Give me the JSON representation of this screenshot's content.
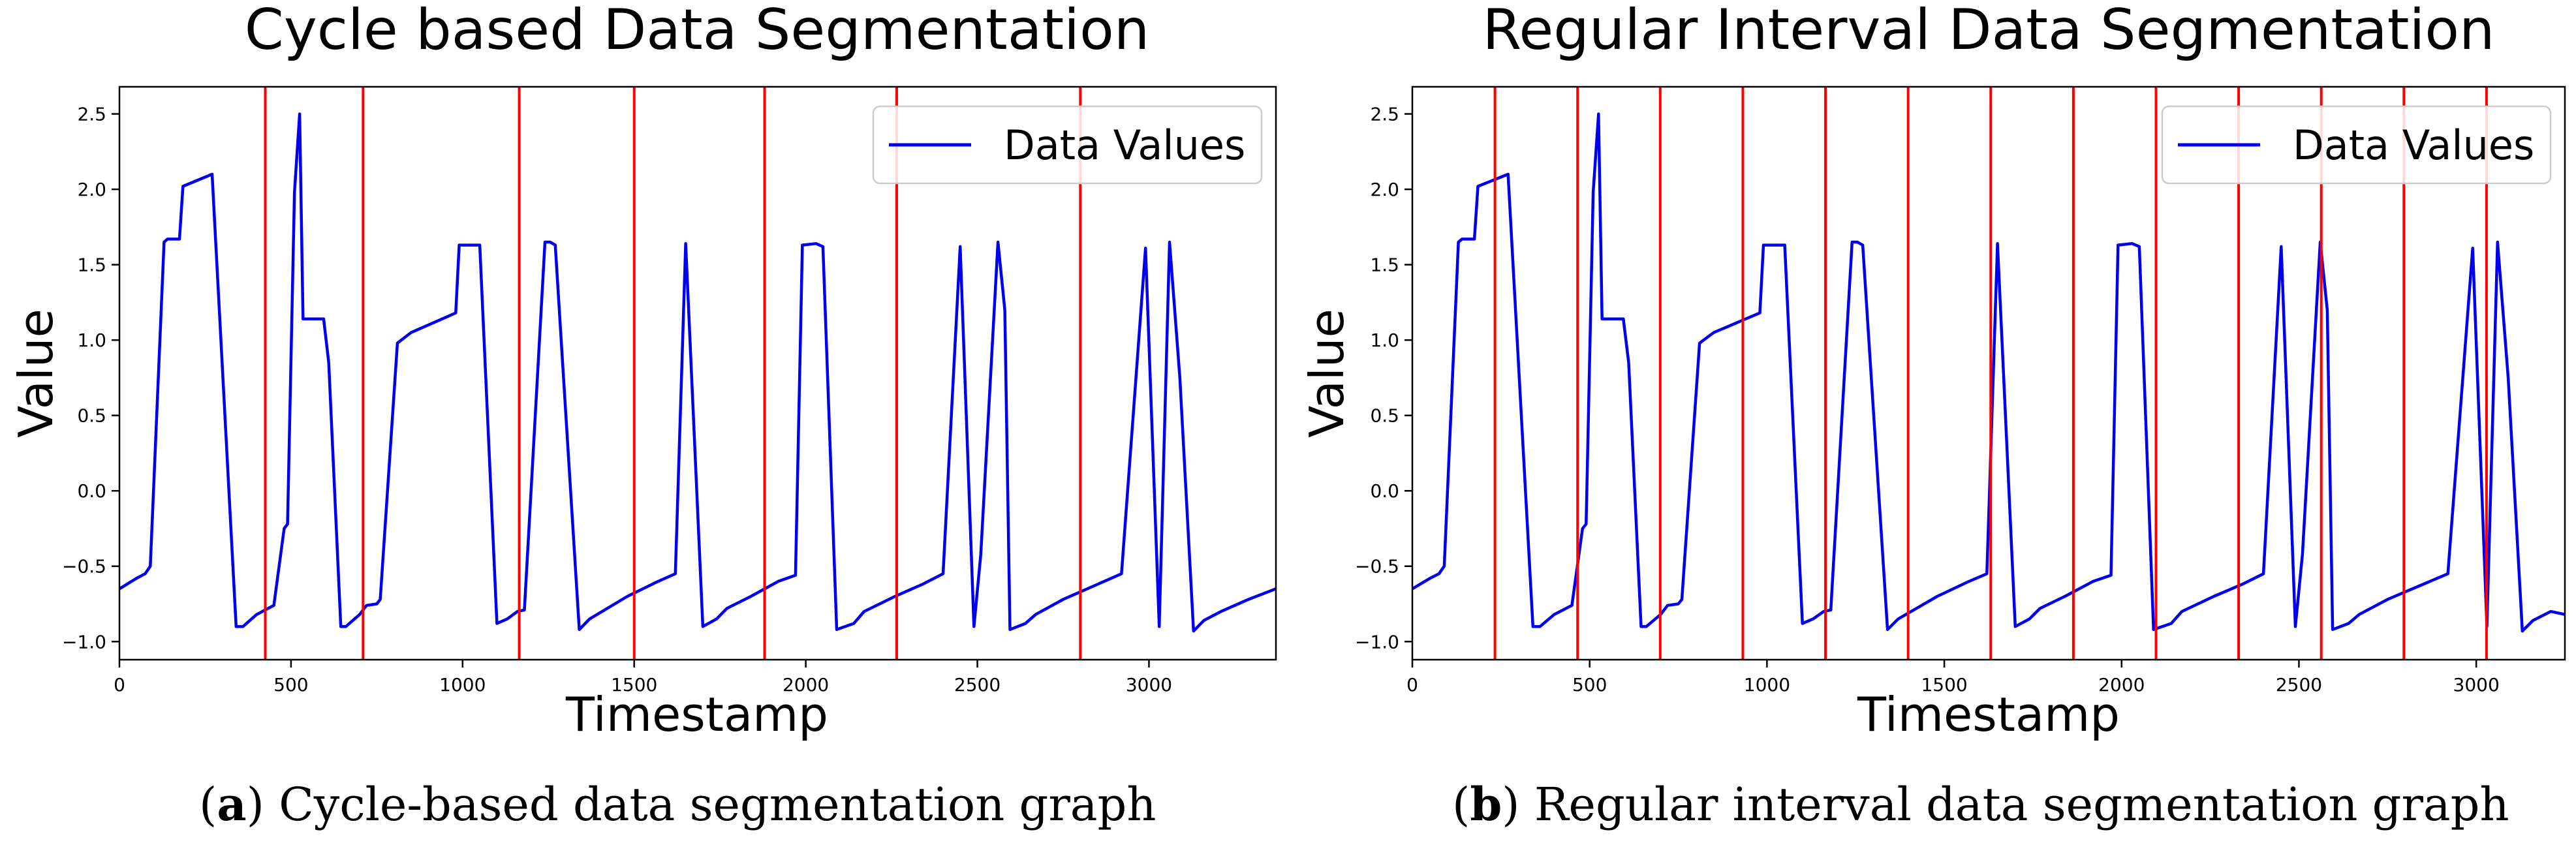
{
  "figure": {
    "caption_a": {
      "open": "(",
      "letter": "a",
      "close": ")",
      "text": " Cycle-based data segmentation graph"
    },
    "caption_b": {
      "open": "(",
      "letter": "b",
      "close": ")",
      "text": " Regular interval data segmentation graph"
    }
  },
  "chart_data": [
    {
      "type": "line",
      "title": "Cycle based Data Segmentation",
      "xlabel": "Timestamp",
      "ylabel": "Value",
      "xlim": [
        0,
        3370
      ],
      "ylim": [
        -1.12,
        2.68
      ],
      "xticks": [
        0,
        500,
        1000,
        1500,
        2000,
        2500,
        3000
      ],
      "xtick_labels": [
        "0",
        "500",
        "1000",
        "1500",
        "2000",
        "2500",
        "3000"
      ],
      "yticks": [
        -1.0,
        -0.5,
        0.0,
        0.5,
        1.0,
        1.5,
        2.0,
        2.5
      ],
      "ytick_labels": [
        "−1.0",
        "−0.5",
        "0.0",
        "0.5",
        "1.0",
        "1.5",
        "2.0",
        "2.5"
      ],
      "legend": {
        "label": "Data Values",
        "placement": "top-right"
      },
      "series": [
        {
          "name": "Data Values",
          "color": "#0000ee",
          "x": [
            0,
            50,
            75,
            90,
            130,
            140,
            175,
            185,
            270,
            340,
            360,
            400,
            450,
            480,
            490,
            510,
            525,
            535,
            560,
            595,
            610,
            645,
            660,
            700,
            720,
            750,
            760,
            810,
            850,
            920,
            980,
            990,
            1050,
            1100,
            1130,
            1160,
            1180,
            1240,
            1255,
            1270,
            1290,
            1340,
            1370,
            1480,
            1570,
            1620,
            1650,
            1700,
            1740,
            1770,
            1840,
            1920,
            1970,
            1990,
            2030,
            2050,
            2090,
            2140,
            2170,
            2260,
            2340,
            2400,
            2450,
            2490,
            2510,
            2560,
            2580,
            2595,
            2640,
            2670,
            2750,
            2850,
            2920,
            2990,
            3030,
            3060,
            3090,
            3130,
            3160,
            3210,
            3290,
            3370
          ],
          "y": [
            -0.65,
            -0.58,
            -0.55,
            -0.5,
            1.65,
            1.67,
            1.67,
            2.02,
            2.1,
            -0.9,
            -0.9,
            -0.82,
            -0.76,
            -0.25,
            -0.22,
            1.98,
            2.5,
            1.14,
            1.14,
            1.14,
            0.85,
            -0.9,
            -0.9,
            -0.82,
            -0.76,
            -0.75,
            -0.72,
            0.98,
            1.05,
            1.12,
            1.18,
            1.63,
            1.63,
            -0.88,
            -0.85,
            -0.8,
            -0.79,
            1.65,
            1.65,
            1.63,
            0.9,
            -0.92,
            -0.85,
            -0.7,
            -0.6,
            -0.55,
            1.64,
            -0.9,
            -0.85,
            -0.78,
            -0.7,
            -0.6,
            -0.56,
            1.63,
            1.64,
            1.62,
            -0.92,
            -0.88,
            -0.8,
            -0.7,
            -0.62,
            -0.55,
            1.62,
            -0.9,
            -0.42,
            1.65,
            1.2,
            -0.92,
            -0.88,
            -0.82,
            -0.72,
            -0.62,
            -0.55,
            1.61,
            -0.9,
            1.65,
            0.75,
            -0.93,
            -0.86,
            -0.8,
            -0.72,
            -0.65
          ]
        }
      ],
      "vlines": [
        425,
        710,
        1165,
        1500,
        1880,
        2265,
        2800
      ]
    },
    {
      "type": "line",
      "title": "Regular Interval Data Segmentation",
      "xlabel": "Timestamp",
      "ylabel": "Value",
      "xlim": [
        0,
        3250
      ],
      "ylim": [
        -1.12,
        2.68
      ],
      "xticks": [
        0,
        500,
        1000,
        1500,
        2000,
        2500,
        3000
      ],
      "xtick_labels": [
        "0",
        "500",
        "1000",
        "1500",
        "2000",
        "2500",
        "3000"
      ],
      "yticks": [
        -1.0,
        -0.5,
        0.0,
        0.5,
        1.0,
        1.5,
        2.0,
        2.5
      ],
      "ytick_labels": [
        "−1.0",
        "−0.5",
        "0.0",
        "0.5",
        "1.0",
        "1.5",
        "2.0",
        "2.5"
      ],
      "legend": {
        "label": "Data Values",
        "placement": "top-right"
      },
      "series": [
        {
          "name": "Data Values",
          "color": "#0000ee",
          "x": [
            0,
            50,
            75,
            90,
            130,
            140,
            175,
            185,
            270,
            340,
            360,
            400,
            450,
            480,
            490,
            510,
            525,
            535,
            560,
            595,
            610,
            645,
            660,
            700,
            720,
            750,
            760,
            810,
            850,
            920,
            980,
            990,
            1050,
            1100,
            1130,
            1160,
            1180,
            1240,
            1255,
            1270,
            1290,
            1340,
            1370,
            1480,
            1570,
            1620,
            1650,
            1700,
            1740,
            1770,
            1840,
            1920,
            1970,
            1990,
            2030,
            2050,
            2090,
            2140,
            2170,
            2260,
            2340,
            2400,
            2450,
            2490,
            2510,
            2560,
            2580,
            2595,
            2640,
            2670,
            2750,
            2850,
            2920,
            2990,
            3030,
            3060,
            3090,
            3130,
            3160,
            3210,
            3250
          ],
          "y": [
            -0.65,
            -0.58,
            -0.55,
            -0.5,
            1.65,
            1.67,
            1.67,
            2.02,
            2.1,
            -0.9,
            -0.9,
            -0.82,
            -0.76,
            -0.25,
            -0.22,
            1.98,
            2.5,
            1.14,
            1.14,
            1.14,
            0.85,
            -0.9,
            -0.9,
            -0.82,
            -0.76,
            -0.75,
            -0.72,
            0.98,
            1.05,
            1.12,
            1.18,
            1.63,
            1.63,
            -0.88,
            -0.85,
            -0.8,
            -0.79,
            1.65,
            1.65,
            1.63,
            0.9,
            -0.92,
            -0.85,
            -0.7,
            -0.6,
            -0.55,
            1.64,
            -0.9,
            -0.85,
            -0.78,
            -0.7,
            -0.6,
            -0.56,
            1.63,
            1.64,
            1.62,
            -0.92,
            -0.88,
            -0.8,
            -0.7,
            -0.62,
            -0.55,
            1.62,
            -0.9,
            -0.42,
            1.65,
            1.2,
            -0.92,
            -0.88,
            -0.82,
            -0.72,
            -0.62,
            -0.55,
            1.61,
            -0.9,
            1.65,
            0.75,
            -0.93,
            -0.86,
            -0.8,
            -0.82
          ]
        }
      ],
      "vlines": [
        233,
        466,
        699,
        932,
        1165,
        1398,
        1631,
        1864,
        2097,
        2330,
        2563,
        2796,
        3029
      ]
    }
  ]
}
